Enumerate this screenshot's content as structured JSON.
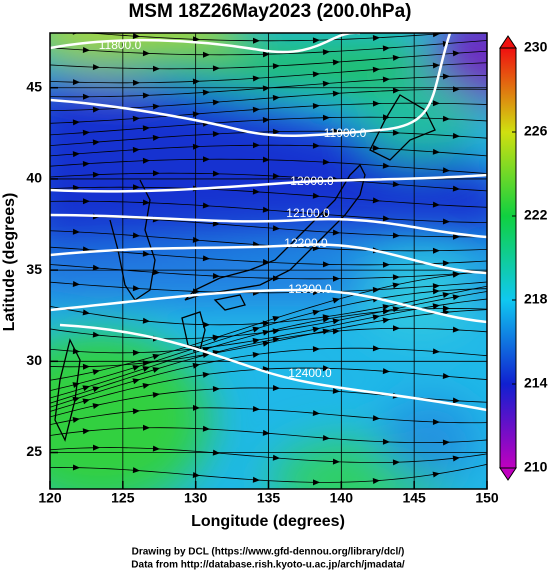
{
  "chart_data": {
    "type": "contour",
    "title": "MSM 18Z26May2023 (200.0hPa)",
    "x_label": "Longitude (degrees)",
    "y_label": "Latitude  (degrees)",
    "xlim": [
      120,
      150
    ],
    "xticks": [
      120,
      125,
      130,
      135,
      140,
      145,
      150
    ],
    "ylim": [
      23,
      48
    ],
    "yticks": [
      25,
      30,
      35,
      40,
      45
    ],
    "grid": true,
    "colorbar": {
      "lim": [
        210,
        230
      ],
      "ticks": [
        210,
        214,
        218,
        222,
        226,
        230
      ]
    },
    "contours": [
      {
        "value": 11800,
        "label": "11800.0"
      },
      {
        "value": 11900,
        "label": "11900.0"
      },
      {
        "value": 12000,
        "label": "12000.0"
      },
      {
        "value": 12100,
        "label": "12100.0"
      },
      {
        "value": 12200,
        "label": "12200.0"
      },
      {
        "value": 12300,
        "label": "12300.0"
      },
      {
        "value": 12400,
        "label": "12400.0"
      }
    ]
  },
  "footer": [
    "Drawing by DCL (https://www.gfd-dennou.org/library/dcl/)",
    "Data from http://database.rish.kyoto-u.ac.jp/arch/jmadata/"
  ]
}
